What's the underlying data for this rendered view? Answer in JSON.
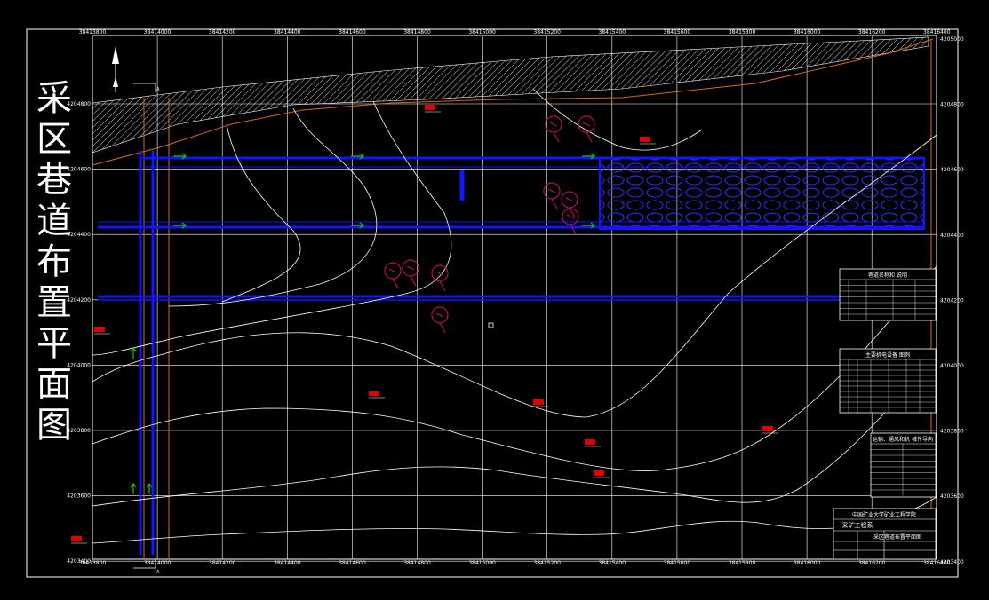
{
  "title_chars": [
    "采",
    "区",
    "巷",
    "道",
    "布",
    "置",
    "平",
    "面",
    "图"
  ],
  "x_ticks": [
    "38413800",
    "38414000",
    "38414200",
    "38414400",
    "38414600",
    "38414800",
    "38415000",
    "38415200",
    "38415400",
    "38415600",
    "38415800",
    "38416000",
    "38416200",
    "38416400"
  ],
  "y_ticks_left": [
    "4204800",
    "4204600",
    "4204400",
    "4204200",
    "4204000",
    "4203800",
    "4203600",
    "4203400"
  ],
  "y_ticks_right": [
    "4205000",
    "4204800",
    "4204600",
    "4204400",
    "4204200",
    "4204000",
    "4203800",
    "4203600",
    "4203400"
  ],
  "section_marks": [
    "A",
    "A"
  ],
  "boreholes": [
    {
      "label": "□"
    },
    {
      "label": "□"
    },
    {
      "label": "□"
    },
    {
      "label": "□"
    },
    {
      "label": "□"
    },
    {
      "label": "□"
    },
    {
      "label": "□"
    },
    {
      "label": "□"
    }
  ],
  "legend_tables": [
    {
      "title": "巷道名称和 说明"
    },
    {
      "title": "主要机电设备 图例"
    },
    {
      "title": "运输、通风和机 械件导向"
    }
  ],
  "title_block": {
    "org": "中国矿业大学矿业工程学院",
    "dept": "采矿工程系",
    "drawing": "采区巷道布置平面图"
  },
  "colors": {
    "background": "#000000",
    "grid": "#ffffff",
    "roadway": "#1414ff",
    "contour": "#ffffff",
    "boundary": "#d2691e",
    "equipment": "#b0105f",
    "airflow": "#00d000",
    "borehole_tag": "#e00000"
  }
}
